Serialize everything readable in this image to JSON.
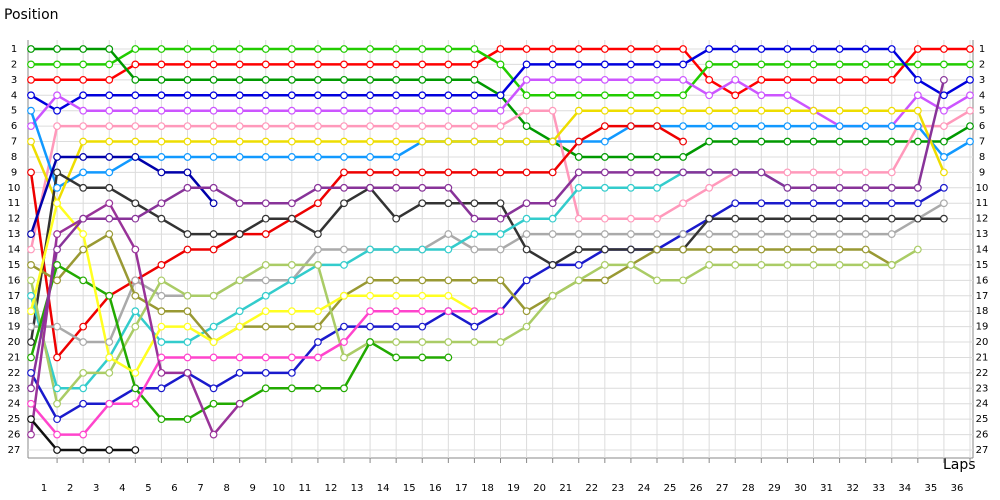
{
  "chart_data": {
    "type": "line",
    "y_label": "Position",
    "x_label": "Laps",
    "x": [
      0,
      1,
      2,
      3,
      4,
      5,
      6,
      7,
      8,
      9,
      10,
      11,
      12,
      13,
      14,
      15,
      16,
      17,
      18,
      19,
      20,
      21,
      22,
      23,
      24,
      25,
      26,
      27,
      28,
      29,
      30,
      31,
      32,
      33,
      34,
      35,
      36
    ],
    "xlim": [
      0,
      36
    ],
    "ylim": [
      1,
      27
    ],
    "y_reversed": true,
    "grid": true,
    "xticks": [
      1,
      2,
      3,
      4,
      5,
      6,
      7,
      8,
      9,
      10,
      11,
      12,
      13,
      14,
      15,
      16,
      17,
      18,
      19,
      20,
      21,
      22,
      23,
      24,
      25,
      26,
      27,
      28,
      29,
      30,
      31,
      32,
      33,
      34,
      35,
      36
    ],
    "yticks": [
      1,
      2,
      3,
      4,
      5,
      6,
      7,
      8,
      9,
      10,
      11,
      12,
      13,
      14,
      15,
      16,
      17,
      18,
      19,
      20,
      21,
      22,
      23,
      24,
      25,
      26,
      27
    ],
    "series": [
      {
        "color": "#ff0000",
        "values": [
          3,
          3,
          3,
          3,
          2,
          2,
          2,
          2,
          2,
          2,
          2,
          2,
          2,
          2,
          2,
          2,
          2,
          2,
          1,
          1,
          1,
          1,
          1,
          1,
          1,
          1,
          3,
          4,
          3,
          3,
          3,
          3,
          3,
          3,
          1,
          1,
          1
        ]
      },
      {
        "color": "#22cc00",
        "values": [
          2,
          2,
          2,
          2,
          1,
          1,
          1,
          1,
          1,
          1,
          1,
          1,
          1,
          1,
          1,
          1,
          1,
          1,
          2,
          4,
          4,
          4,
          4,
          4,
          4,
          4,
          2,
          2,
          2,
          2,
          2,
          2,
          2,
          2,
          2,
          2,
          2
        ]
      },
      {
        "color": "#009900",
        "values": [
          1,
          1,
          1,
          1,
          3,
          3,
          3,
          3,
          3,
          3,
          3,
          3,
          3,
          3,
          3,
          3,
          3,
          3,
          4,
          6,
          7,
          8,
          8,
          8,
          8,
          8,
          7,
          7,
          7,
          7,
          7,
          7,
          7,
          7,
          7,
          7,
          6
        ]
      },
      {
        "color": "#0000dd",
        "values": [
          4,
          5,
          4,
          4,
          4,
          4,
          4,
          4,
          4,
          4,
          4,
          4,
          4,
          4,
          4,
          4,
          4,
          4,
          4,
          2,
          2,
          2,
          2,
          2,
          2,
          2,
          1,
          1,
          1,
          1,
          1,
          1,
          1,
          1,
          3,
          4,
          3
        ]
      },
      {
        "color": "#cc55ff",
        "values": [
          6,
          4,
          5,
          5,
          5,
          5,
          5,
          5,
          5,
          5,
          5,
          5,
          5,
          5,
          5,
          5,
          5,
          5,
          5,
          3,
          3,
          3,
          3,
          3,
          3,
          3,
          4,
          3,
          4,
          4,
          5,
          6,
          6,
          6,
          4,
          5,
          4
        ]
      },
      {
        "color": "#ff99bb",
        "values": [
          14,
          6,
          6,
          6,
          6,
          6,
          6,
          6,
          6,
          6,
          6,
          6,
          6,
          6,
          6,
          6,
          6,
          6,
          6,
          5,
          5,
          12,
          12,
          12,
          12,
          11,
          10,
          9,
          9,
          9,
          9,
          9,
          9,
          9,
          6,
          6,
          5
        ]
      },
      {
        "color": "#1199ff",
        "values": [
          5,
          10,
          9,
          9,
          8,
          8,
          8,
          8,
          8,
          8,
          8,
          8,
          8,
          8,
          8,
          7,
          7,
          7,
          7,
          7,
          7,
          7,
          7,
          6,
          6,
          6,
          6,
          6,
          6,
          6,
          6,
          6,
          6,
          6,
          6,
          8,
          7
        ]
      },
      {
        "color": "#eedd00",
        "values": [
          7,
          11,
          7,
          7,
          7,
          7,
          7,
          7,
          7,
          7,
          7,
          7,
          7,
          7,
          7,
          7,
          7,
          7,
          7,
          7,
          7,
          5,
          5,
          5,
          5,
          5,
          5,
          5,
          5,
          5,
          5,
          5,
          5,
          5,
          5,
          9,
          null
        ]
      },
      {
        "color": "#ee0000",
        "values": [
          9,
          21,
          19,
          17,
          16,
          15,
          14,
          14,
          13,
          13,
          12,
          11,
          9,
          9,
          9,
          9,
          9,
          9,
          9,
          9,
          9,
          7,
          6,
          6,
          6,
          7,
          null,
          null,
          null,
          null,
          null,
          null,
          null,
          null,
          null,
          null,
          null
        ]
      },
      {
        "color": "#1a1acc",
        "values": [
          22,
          25,
          24,
          24,
          23,
          23,
          22,
          23,
          22,
          22,
          22,
          20,
          19,
          19,
          19,
          19,
          18,
          19,
          18,
          16,
          15,
          15,
          14,
          14,
          14,
          13,
          12,
          11,
          11,
          11,
          11,
          11,
          11,
          11,
          11,
          10,
          null
        ]
      },
      {
        "color": "#aaaaaa",
        "values": [
          19,
          19,
          20,
          20,
          16,
          17,
          17,
          17,
          16,
          16,
          16,
          14,
          14,
          14,
          14,
          14,
          13,
          14,
          14,
          13,
          13,
          13,
          13,
          13,
          13,
          13,
          13,
          13,
          13,
          13,
          13,
          13,
          13,
          13,
          12,
          11,
          null
        ]
      },
      {
        "color": "#333333",
        "values": [
          20,
          9,
          10,
          10,
          11,
          12,
          13,
          13,
          13,
          12,
          12,
          13,
          11,
          10,
          12,
          11,
          11,
          11,
          11,
          14,
          15,
          14,
          14,
          14,
          14,
          14,
          12,
          12,
          12,
          12,
          12,
          12,
          12,
          12,
          12,
          12,
          null
        ]
      },
      {
        "color": "#0000aa",
        "values": [
          13,
          8,
          8,
          8,
          8,
          9,
          9,
          11,
          null,
          null,
          null,
          null,
          null,
          null,
          null,
          null,
          null,
          null,
          null,
          null,
          null,
          null,
          null,
          null,
          null,
          null,
          null,
          null,
          null,
          null,
          null,
          null,
          null,
          null,
          null,
          null,
          null
        ]
      },
      {
        "color": "#33cccc",
        "values": [
          17,
          23,
          23,
          21,
          18,
          20,
          20,
          19,
          18,
          17,
          16,
          15,
          15,
          14,
          14,
          14,
          14,
          13,
          13,
          12,
          12,
          10,
          10,
          10,
          10,
          9,
          9,
          9,
          9,
          10,
          10,
          10,
          10,
          10,
          10,
          null,
          null
        ]
      },
      {
        "color": "#999933",
        "values": [
          15,
          16,
          14,
          13,
          17,
          18,
          18,
          20,
          19,
          19,
          19,
          19,
          17,
          16,
          16,
          16,
          16,
          16,
          16,
          18,
          17,
          16,
          16,
          15,
          14,
          14,
          14,
          14,
          14,
          14,
          14,
          14,
          14,
          15,
          null,
          null,
          null
        ]
      },
      {
        "color": "#aacc66",
        "values": [
          16,
          24,
          22,
          22,
          19,
          16,
          17,
          17,
          16,
          15,
          15,
          15,
          21,
          20,
          20,
          20,
          20,
          20,
          20,
          19,
          17,
          16,
          15,
          15,
          16,
          16,
          15,
          15,
          15,
          15,
          15,
          15,
          15,
          15,
          14,
          null,
          null
        ]
      },
      {
        "color": "#22aa00",
        "values": [
          21,
          15,
          16,
          17,
          23,
          25,
          25,
          24,
          24,
          23,
          23,
          23,
          23,
          20,
          21,
          21,
          21,
          null,
          null,
          null,
          null,
          null,
          null,
          null,
          null,
          null,
          null,
          null,
          null,
          null,
          null,
          null,
          null,
          null,
          null,
          null,
          null
        ]
      },
      {
        "color": "#ffff22",
        "values": [
          18,
          11,
          13,
          21,
          22,
          19,
          19,
          20,
          19,
          18,
          18,
          18,
          17,
          17,
          17,
          17,
          17,
          18,
          18,
          null,
          null,
          null,
          null,
          null,
          null,
          null,
          null,
          null,
          null,
          null,
          null,
          null,
          null,
          null,
          null,
          null,
          null
        ]
      },
      {
        "color": "#ff44cc",
        "values": [
          24,
          26,
          26,
          24,
          24,
          21,
          21,
          21,
          21,
          21,
          21,
          21,
          20,
          18,
          18,
          18,
          18,
          18,
          18,
          null,
          null,
          null,
          null,
          null,
          null,
          null,
          null,
          null,
          null,
          null,
          null,
          null,
          null,
          null,
          null,
          null,
          null
        ]
      },
      {
        "color": "#993399",
        "values": [
          26,
          13,
          12,
          11,
          14,
          22,
          22,
          26,
          24,
          null,
          null,
          null,
          null,
          null,
          null,
          null,
          null,
          null,
          null,
          null,
          null,
          null,
          null,
          null,
          null,
          null,
          null,
          null,
          null,
          null,
          null,
          null,
          null,
          null,
          null,
          null,
          null
        ]
      },
      {
        "color": "#883399",
        "values": [
          23,
          14,
          12,
          12,
          12,
          11,
          10,
          10,
          11,
          11,
          11,
          10,
          10,
          10,
          10,
          10,
          10,
          12,
          12,
          11,
          11,
          9,
          9,
          9,
          9,
          9,
          9,
          9,
          9,
          10,
          10,
          10,
          10,
          10,
          10,
          3,
          null
        ]
      },
      {
        "color": "#111111",
        "values": [
          25,
          27,
          27,
          27,
          27,
          null,
          null,
          null,
          null,
          null,
          null,
          null,
          null,
          null,
          null,
          null,
          null,
          null,
          null,
          null,
          null,
          null,
          null,
          null,
          null,
          null,
          null,
          null,
          null,
          null,
          null,
          null,
          null,
          null,
          null,
          null,
          null
        ]
      }
    ]
  }
}
